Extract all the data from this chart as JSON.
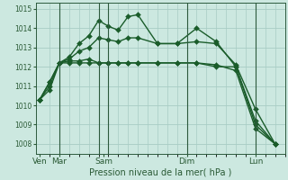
{
  "xlabel": "Pression niveau de la mer( hPa )",
  "background_color": "#cce8e0",
  "plot_bg_color": "#cce8e0",
  "grid_color": "#a8ccC4",
  "line_color": "#1a5c2a",
  "ylim": [
    1007.5,
    1015.3
  ],
  "yticks": [
    1008,
    1009,
    1010,
    1011,
    1012,
    1013,
    1014,
    1015
  ],
  "xlim": [
    -0.2,
    12.5
  ],
  "series": [
    {
      "x": [
        0,
        0.5,
        1,
        1.5,
        2,
        2.5,
        3,
        3.5,
        4,
        4.5,
        5,
        6,
        7,
        8,
        9,
        10,
        11,
        12
      ],
      "y": [
        1010.3,
        1010.8,
        1012.2,
        1012.5,
        1013.2,
        1013.6,
        1014.4,
        1014.1,
        1013.9,
        1014.6,
        1014.7,
        1013.2,
        1013.2,
        1014.0,
        1013.3,
        1012.0,
        1009.0,
        1008.0
      ]
    },
    {
      "x": [
        0,
        0.5,
        1,
        1.5,
        2,
        2.5,
        3,
        3.5,
        4,
        4.5,
        5,
        6,
        7,
        8,
        9,
        10,
        11,
        12
      ],
      "y": [
        1010.3,
        1011.2,
        1012.2,
        1012.4,
        1012.8,
        1013.0,
        1013.5,
        1013.4,
        1013.3,
        1013.5,
        1013.5,
        1013.2,
        1013.2,
        1013.3,
        1013.2,
        1012.1,
        1009.8,
        1008.0
      ]
    },
    {
      "x": [
        0,
        0.5,
        1,
        1.5,
        2,
        2.5,
        3,
        3.5,
        4,
        4.5,
        5,
        6,
        7,
        8,
        9,
        10,
        11,
        12
      ],
      "y": [
        1010.3,
        1011.0,
        1012.2,
        1012.3,
        1012.3,
        1012.4,
        1012.2,
        1012.2,
        1012.2,
        1012.2,
        1012.2,
        1012.2,
        1012.2,
        1012.2,
        1012.1,
        1011.8,
        1008.8,
        1008.0
      ]
    },
    {
      "x": [
        0,
        0.5,
        1,
        1.5,
        2,
        2.5,
        3,
        3.5,
        4,
        4.5,
        5,
        6,
        7,
        8,
        9,
        10,
        11,
        12
      ],
      "y": [
        1010.3,
        1011.2,
        1012.2,
        1012.2,
        1012.2,
        1012.2,
        1012.2,
        1012.2,
        1012.2,
        1012.2,
        1012.2,
        1012.2,
        1012.2,
        1012.2,
        1012.0,
        1012.0,
        1009.2,
        1008.0
      ]
    }
  ],
  "vlines": [
    1.0,
    3.0,
    3.5,
    7.5,
    11.0
  ],
  "vline_color": "#2d5a3d",
  "day_ticks": [
    0,
    1.0,
    3.25,
    7.5,
    11.0
  ],
  "day_labels": [
    "Ven",
    "Mar",
    "Sam",
    "Dim",
    "Lun"
  ],
  "tick_color": "#2a5a35",
  "ytick_fontsize": 5.5,
  "xtick_fontsize": 6.5,
  "xlabel_fontsize": 7.0,
  "markersize": 3.0,
  "linewidth": 1.0
}
